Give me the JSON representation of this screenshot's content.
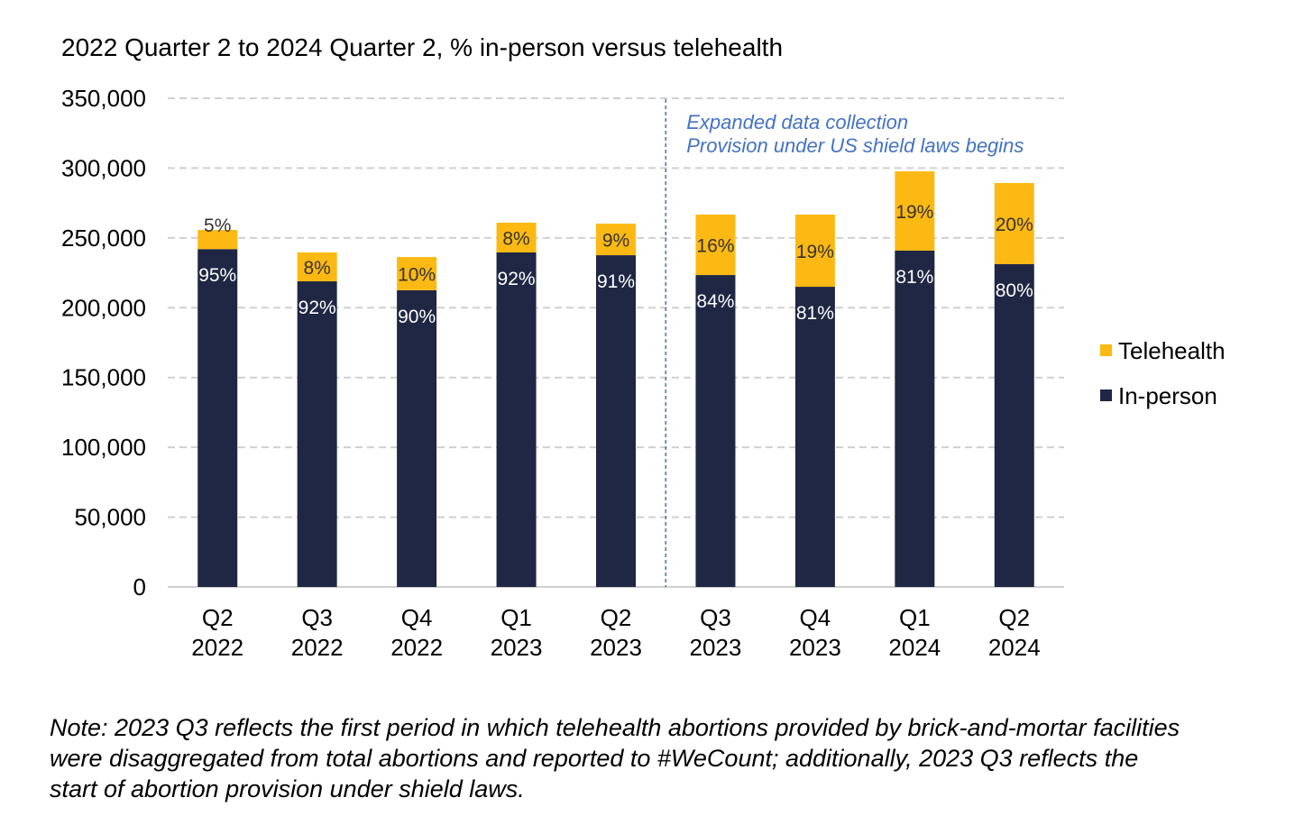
{
  "chart_data": {
    "type": "bar",
    "stacked": true,
    "title": "2022 Quarter 2 to 2024 Quarter 2, % in-person versus telehealth",
    "xlabel": "",
    "ylabel": "",
    "ylim": [
      0,
      350000
    ],
    "yticks": [
      0,
      50000,
      100000,
      150000,
      200000,
      250000,
      300000,
      350000
    ],
    "ytick_labels": [
      "0",
      "50,000",
      "100,000",
      "150,000",
      "200,000",
      "250,000",
      "300,000",
      "350,000"
    ],
    "grid": true,
    "categories": [
      [
        "Q2",
        "2022"
      ],
      [
        "Q3",
        "2022"
      ],
      [
        "Q4",
        "2022"
      ],
      [
        "Q1",
        "2023"
      ],
      [
        "Q2",
        "2023"
      ],
      [
        "Q3",
        "2023"
      ],
      [
        "Q4",
        "2023"
      ],
      [
        "Q1",
        "2024"
      ],
      [
        "Q2",
        "2024"
      ]
    ],
    "series": [
      {
        "name": "In-person",
        "color": "#1f2744",
        "values": [
          242000,
          218900,
          212500,
          239600,
          237600,
          223400,
          215000,
          240900,
          231200
        ],
        "labels": [
          "95%",
          "92%",
          "90%",
          "92%",
          "91%",
          "84%",
          "81%",
          "81%",
          "80%"
        ]
      },
      {
        "name": "Telehealth",
        "color": "#fdb913",
        "values": [
          13700,
          20700,
          23800,
          21300,
          22600,
          43300,
          51700,
          56800,
          58100
        ],
        "labels": [
          "5%",
          "8%",
          "10%",
          "8%",
          "9%",
          "16%",
          "19%",
          "19%",
          "20%"
        ]
      }
    ],
    "legend": {
      "placement": "right",
      "entries": [
        "Telehealth",
        "In-person"
      ]
    },
    "annotation": {
      "after_category_index": 4,
      "lines": [
        "Expanded data collection",
        "Provision under US shield laws begins"
      ],
      "color": "#4472c4"
    }
  },
  "note": [
    "Note: 2023 Q3 reflects the first period in which telehealth abortions provided by brick-and-mortar facilities",
    "were disaggregated from total abortions and reported to #WeCount; additionally, 2023 Q3 reflects the",
    "start of abortion provision under shield laws."
  ]
}
